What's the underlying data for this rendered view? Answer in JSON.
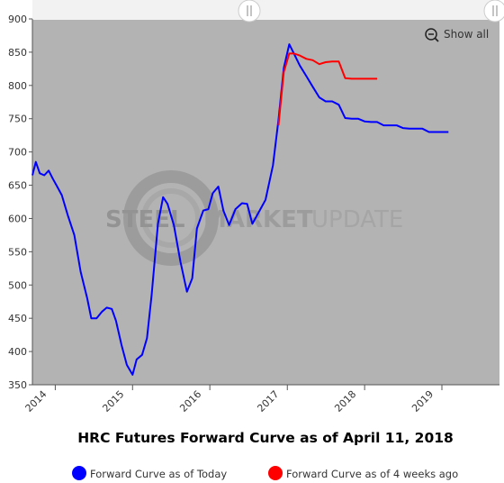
{
  "chart_data": {
    "type": "line",
    "title": "HRC Futures Forward Curve as of April 11, 2018",
    "ylim": [
      350,
      900
    ],
    "y_ticks": [
      "350",
      "400",
      "450",
      "500",
      "550",
      "600",
      "650",
      "700",
      "750",
      "800",
      "850",
      "900"
    ],
    "x_tick_labels": [
      "2014",
      "2015",
      "2016",
      "2017",
      "2018",
      "2019"
    ],
    "xlim": [
      "2013-09-15",
      "2019-09-30"
    ],
    "grid": false,
    "legend_position": "bottom",
    "series": [
      {
        "name": "Forward Curve as of Today",
        "color": "#0000ff",
        "points": [
          [
            "2013-09-15",
            665
          ],
          [
            "2013-10-01",
            685
          ],
          [
            "2013-10-20",
            668
          ],
          [
            "2013-11-10",
            665
          ],
          [
            "2013-12-01",
            672
          ],
          [
            "2013-12-20",
            660
          ],
          [
            "2014-01-10",
            648
          ],
          [
            "2014-02-01",
            635
          ],
          [
            "2014-03-01",
            605
          ],
          [
            "2014-04-01",
            575
          ],
          [
            "2014-05-01",
            520
          ],
          [
            "2014-06-01",
            480
          ],
          [
            "2014-06-20",
            450
          ],
          [
            "2014-07-15",
            450
          ],
          [
            "2014-08-10",
            460
          ],
          [
            "2014-09-01",
            466
          ],
          [
            "2014-09-25",
            464
          ],
          [
            "2014-10-15",
            446
          ],
          [
            "2014-11-10",
            410
          ],
          [
            "2014-12-05",
            380
          ],
          [
            "2015-01-01",
            365
          ],
          [
            "2015-01-20",
            388
          ],
          [
            "2015-02-15",
            395
          ],
          [
            "2015-03-10",
            420
          ],
          [
            "2015-04-01",
            485
          ],
          [
            "2015-05-01",
            592
          ],
          [
            "2015-05-25",
            632
          ],
          [
            "2015-06-15",
            622
          ],
          [
            "2015-07-15",
            590
          ],
          [
            "2015-08-15",
            535
          ],
          [
            "2015-09-15",
            490
          ],
          [
            "2015-10-10",
            510
          ],
          [
            "2015-11-01",
            585
          ],
          [
            "2015-12-01",
            612
          ],
          [
            "2015-12-25",
            614
          ],
          [
            "2016-01-15",
            638
          ],
          [
            "2016-02-10",
            648
          ],
          [
            "2016-03-05",
            612
          ],
          [
            "2016-04-01",
            590
          ],
          [
            "2016-05-01",
            614
          ],
          [
            "2016-06-01",
            623
          ],
          [
            "2016-06-25",
            622
          ],
          [
            "2016-07-20",
            592
          ],
          [
            "2016-08-20",
            610
          ],
          [
            "2016-09-20",
            628
          ],
          [
            "2016-10-25",
            680
          ],
          [
            "2016-11-20",
            748
          ],
          [
            "2016-12-15",
            826
          ],
          [
            "2017-01-10",
            862
          ],
          [
            "2017-02-01",
            848
          ],
          [
            "2017-03-01",
            830
          ],
          [
            "2017-04-01",
            814
          ],
          [
            "2017-05-01",
            798
          ],
          [
            "2017-06-01",
            782
          ],
          [
            "2017-07-01",
            776
          ],
          [
            "2017-08-01",
            776
          ],
          [
            "2017-09-01",
            771
          ],
          [
            "2017-10-01",
            751
          ],
          [
            "2017-11-01",
            750
          ],
          [
            "2017-12-01",
            750
          ],
          [
            "2018-01-01",
            746
          ],
          [
            "2018-02-01",
            745
          ],
          [
            "2018-03-01",
            745
          ],
          [
            "2018-04-01",
            740
          ],
          [
            "2018-05-01",
            740
          ],
          [
            "2018-06-01",
            740
          ],
          [
            "2018-07-01",
            736
          ],
          [
            "2018-08-01",
            735
          ],
          [
            "2018-09-01",
            735
          ],
          [
            "2018-10-01",
            735
          ],
          [
            "2018-11-01",
            730
          ],
          [
            "2018-12-01",
            730
          ],
          [
            "2019-01-01",
            730
          ],
          [
            "2019-02-01",
            730
          ]
        ]
      },
      {
        "name": "Forward Curve as of 4 weeks ago",
        "color": "#ff0000",
        "points": [
          [
            "2016-11-20",
            740
          ],
          [
            "2016-12-15",
            820
          ],
          [
            "2017-01-10",
            848
          ],
          [
            "2017-02-01",
            848
          ],
          [
            "2017-03-01",
            845
          ],
          [
            "2017-04-01",
            840
          ],
          [
            "2017-05-01",
            838
          ],
          [
            "2017-06-01",
            832
          ],
          [
            "2017-07-01",
            835
          ],
          [
            "2017-08-01",
            836
          ],
          [
            "2017-09-01",
            836
          ],
          [
            "2017-10-01",
            811
          ],
          [
            "2017-11-01",
            810
          ],
          [
            "2017-12-01",
            810
          ],
          [
            "2018-01-01",
            810
          ],
          [
            "2018-02-01",
            810
          ],
          [
            "2018-03-01",
            810
          ]
        ]
      }
    ]
  },
  "toolbar": {
    "show_all_label": "Show all"
  },
  "watermark": {
    "word1": "STEEL",
    "word2": "MARKET",
    "word3": "UPDATE"
  },
  "colors": {
    "plot_background": "#b3b3b3",
    "navigator_background": "#f2f2f2",
    "axis": "#555555"
  }
}
